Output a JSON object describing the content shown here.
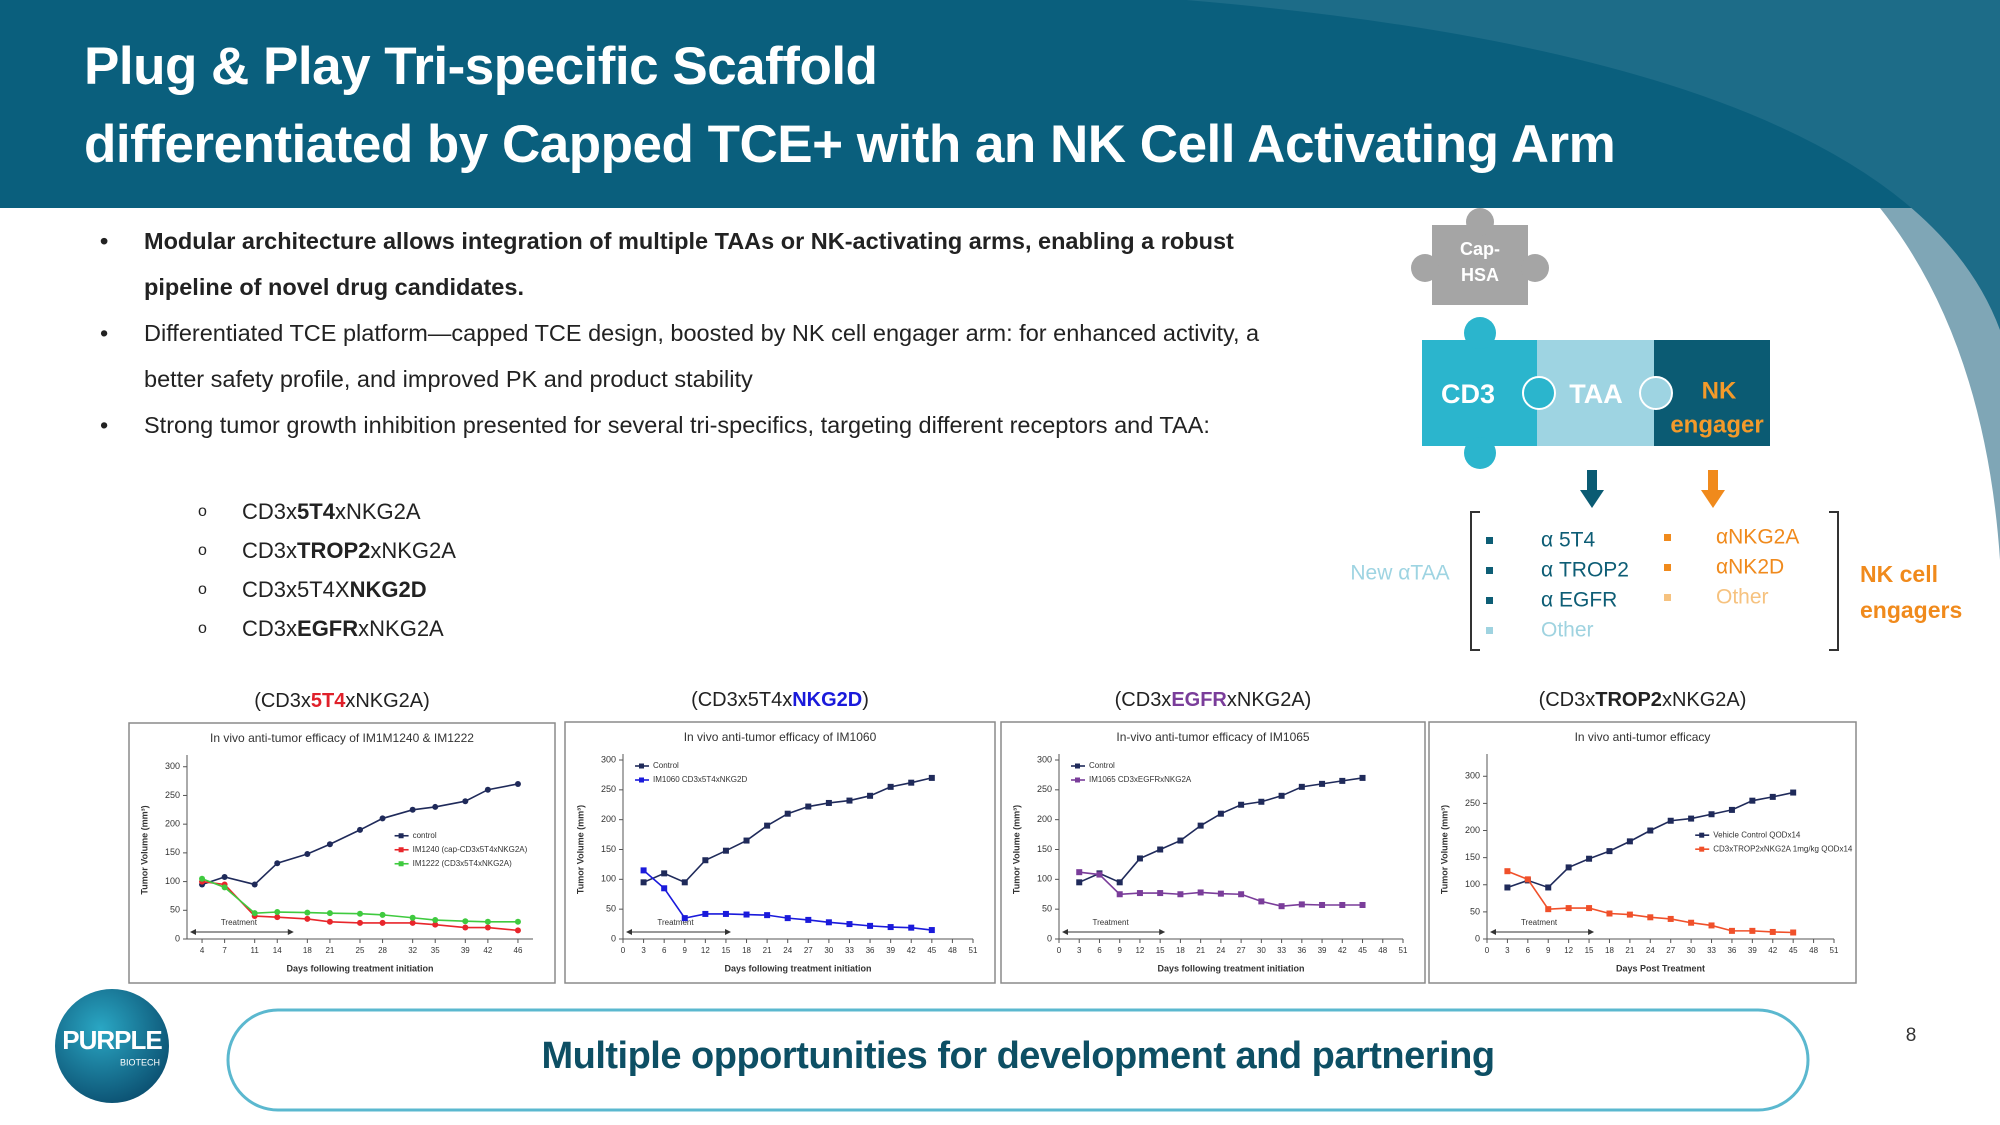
{
  "header": {
    "title": [
      "Plug & Play Tri-specific Scaffold",
      "differentiated by Capped TCE+ with an NK Cell Activating Arm"
    ]
  },
  "bullets": [
    {
      "text": "Modular architecture allows integration of multiple TAAs or NK-activating arms, enabling a robust pipeline of novel drug candidates.",
      "bold": true
    },
    {
      "text": "Differentiated TCE platform—capped TCE design, boosted by NK cell engager arm:  for enhanced activity, a better safety profile, and improved PK and product stability"
    },
    {
      "text": "Strong tumor growth inhibition presented for several tri-specifics, targeting different receptors and TAA:"
    }
  ],
  "sub_items": [
    [
      {
        "text": "CD3x"
      },
      {
        "text": "5T4",
        "bold": true
      },
      {
        "text": "xNKG2A"
      }
    ],
    [
      {
        "text": "CD3x"
      },
      {
        "text": "TROP2",
        "bold": true
      },
      {
        "text": "xNKG2A"
      }
    ],
    [
      {
        "text": "CD3x5T4X"
      },
      {
        "text": "NKG2D",
        "bold": true
      }
    ],
    [
      {
        "text": "CD3x"
      },
      {
        "text": "EGFR",
        "bold": true
      },
      {
        "text": "xNKG2A"
      }
    ]
  ],
  "diagram": {
    "cap": [
      "Cap-",
      "HSA"
    ],
    "cd3": "CD3",
    "taa": "TAA",
    "nk": [
      "NK",
      "engager"
    ],
    "taa_label": "New αTAA",
    "taa_items": [
      {
        "text": "α 5T4",
        "color": "#0d5d75"
      },
      {
        "text": "α TROP2",
        "color": "#0d5d75"
      },
      {
        "text": "α EGFR",
        "color": "#0d5d75"
      },
      {
        "text": "Other",
        "color": "#9fd3e0"
      }
    ],
    "nk_label": [
      "NK cell",
      "engagers"
    ],
    "nk_items": [
      {
        "text": "αNKG2A",
        "color": "#f08a1c"
      },
      {
        "text": "αNK2D",
        "color": "#f08a1c"
      },
      {
        "text": "Other",
        "color": "#f6c27f"
      }
    ]
  },
  "chart_data": [
    {
      "type": "line",
      "label": [
        {
          "text": "(CD3x"
        },
        {
          "text": "5T4",
          "bold": true,
          "color": "#e0202a"
        },
        {
          "text": "xNKG2A)"
        }
      ],
      "title": "In vivo anti-tumor efficacy of IM1M1240 & IM1222",
      "xlabel": "Days following treatment initiation",
      "ylabel": "Tumor Volume (mm³)",
      "annotation": "Treatment",
      "legend": "center right",
      "x": [
        4,
        7,
        11,
        14,
        18,
        21,
        25,
        28,
        32,
        35,
        39,
        42,
        46
      ],
      "xlim": [
        2,
        48
      ],
      "xticks": [
        4,
        7,
        11,
        14,
        18,
        21,
        25,
        28,
        32,
        35,
        39,
        42,
        46
      ],
      "ylim": [
        0,
        310
      ],
      "yticks": [
        0,
        50,
        100,
        150,
        200,
        250,
        300
      ],
      "series": [
        {
          "name": "control",
          "color": "#1f2a5a",
          "marker": "circle",
          "values": [
            95,
            108,
            95,
            132,
            148,
            165,
            190,
            210,
            225,
            230,
            240,
            260,
            270
          ]
        },
        {
          "name": "IM1240 (cap-CD3x5T4xNKG2A)",
          "color": "#e8262b",
          "marker": "circle",
          "values": [
            100,
            95,
            40,
            38,
            35,
            30,
            28,
            28,
            28,
            25,
            20,
            20,
            15
          ]
        },
        {
          "name": "IM1222 (CD3x5T4xNKG2A)",
          "color": "#3fca3f",
          "marker": "circle",
          "values": [
            105,
            90,
            45,
            47,
            46,
            45,
            44,
            42,
            37,
            33,
            31,
            30,
            30
          ]
        }
      ]
    },
    {
      "type": "line",
      "label": [
        {
          "text": "(CD3x5T4x"
        },
        {
          "text": "NKG2D",
          "bold": true,
          "color": "#1a1adb"
        },
        {
          "text": ")"
        }
      ],
      "title": "In vivo anti-tumor efficacy of IM1060",
      "xlabel": "Days following treatment initiation",
      "ylabel": "Tumor Volume (mm³)",
      "annotation": "Treatment",
      "legend": "upper left",
      "x": [
        3,
        6,
        9,
        12,
        15,
        18,
        21,
        24,
        27,
        30,
        33,
        36,
        39,
        42,
        45
      ],
      "xlim": [
        0,
        51
      ],
      "xticks": [
        0,
        3,
        6,
        9,
        12,
        15,
        18,
        21,
        24,
        27,
        30,
        33,
        36,
        39,
        42,
        45,
        48,
        51
      ],
      "ylim": [
        0,
        300
      ],
      "yticks": [
        0,
        50,
        100,
        150,
        200,
        250,
        300
      ],
      "series": [
        {
          "name": "Control",
          "color": "#1f2a5a",
          "marker": "square",
          "values": [
            95,
            110,
            95,
            132,
            148,
            165,
            190,
            210,
            222,
            228,
            232,
            240,
            255,
            262,
            270
          ]
        },
        {
          "name": "IM1060 CD3x5T4xNKG2D",
          "color": "#1a1adb",
          "marker": "square",
          "values": [
            115,
            85,
            35,
            42,
            42,
            41,
            40,
            35,
            32,
            28,
            25,
            22,
            20,
            19,
            15
          ]
        }
      ]
    },
    {
      "type": "line",
      "label": [
        {
          "text": "(CD3x"
        },
        {
          "text": "EGFR",
          "bold": true,
          "color": "#7a3d9a"
        },
        {
          "text": "xNKG2A)"
        }
      ],
      "title": "In-vivo anti-tumor efficacy of IM1065",
      "xlabel": "Days following treatment initiation",
      "ylabel": "Tumor Volume (mm³)",
      "annotation": "Treatment",
      "legend": "upper left",
      "x": [
        3,
        6,
        9,
        12,
        15,
        18,
        21,
        24,
        27,
        30,
        33,
        36,
        39,
        42,
        45
      ],
      "xlim": [
        0,
        51
      ],
      "xticks": [
        0,
        3,
        6,
        9,
        12,
        15,
        18,
        21,
        24,
        27,
        30,
        33,
        36,
        39,
        42,
        45,
        48,
        51
      ],
      "ylim": [
        0,
        300
      ],
      "yticks": [
        0,
        50,
        100,
        150,
        200,
        250,
        300
      ],
      "series": [
        {
          "name": "Control",
          "color": "#1f2a5a",
          "marker": "square",
          "values": [
            95,
            110,
            95,
            135,
            150,
            165,
            190,
            210,
            225,
            230,
            240,
            255,
            260,
            265,
            270
          ]
        },
        {
          "name": "IM1065 CD3xEGFRxNKG2A",
          "color": "#7a3d9a",
          "marker": "square",
          "values": [
            112,
            108,
            75,
            77,
            77,
            75,
            78,
            76,
            75,
            63,
            55,
            58,
            57,
            57,
            57
          ]
        }
      ]
    },
    {
      "type": "line",
      "label": [
        {
          "text": "(CD3x"
        },
        {
          "text": "TROP2",
          "bold": true,
          "color": "#222222"
        },
        {
          "text": "xNKG2A)"
        }
      ],
      "title": "In vivo anti-tumor efficacy",
      "xlabel": "Days Post Treatment",
      "ylabel": "Tumor Volume (mm³)",
      "annotation": "Treatment",
      "legend": "center right",
      "x": [
        3,
        6,
        9,
        12,
        15,
        18,
        21,
        24,
        27,
        30,
        33,
        36,
        39,
        42,
        45
      ],
      "xlim": [
        0,
        51
      ],
      "xticks": [
        0,
        3,
        6,
        9,
        12,
        15,
        18,
        21,
        24,
        27,
        30,
        33,
        36,
        39,
        42,
        45,
        48,
        51
      ],
      "ylim": [
        0,
        330
      ],
      "yticks": [
        0,
        50,
        100,
        150,
        200,
        250,
        300
      ],
      "series": [
        {
          "name": "Vehicle Control QODx14",
          "color": "#1f2a5a",
          "marker": "square",
          "values": [
            95,
            108,
            95,
            132,
            148,
            162,
            180,
            200,
            218,
            222,
            230,
            238,
            255,
            262,
            270
          ]
        },
        {
          "name": "CD3xTROP2xNKG2A 1mg/kg QODx14",
          "color": "#f0502a",
          "marker": "square",
          "values": [
            125,
            110,
            55,
            57,
            57,
            47,
            45,
            40,
            37,
            30,
            25,
            15,
            15,
            13,
            12
          ]
        }
      ]
    }
  ],
  "footer": {
    "text": "Multiple opportunities for development and partnering",
    "logo": [
      "PURPLE",
      "BIOTECH"
    ],
    "page": 8
  }
}
